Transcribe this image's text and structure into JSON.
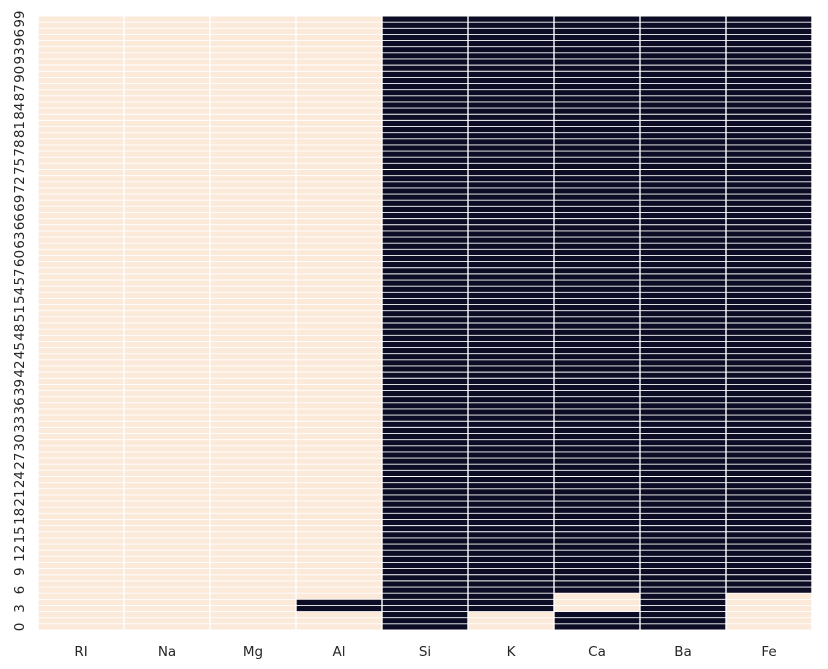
{
  "chart_data": {
    "type": "heatmap",
    "title": "",
    "xlabel": "",
    "ylabel": "",
    "columns": [
      "RI",
      "Na",
      "Mg",
      "Al",
      "Si",
      "K",
      "Ca",
      "Ba",
      "Fe"
    ],
    "row_count": 100,
    "row_order": "bottom-to-top",
    "y_tick_values": [
      0,
      3,
      6,
      9,
      12,
      15,
      18,
      21,
      24,
      27,
      30,
      33,
      36,
      39,
      42,
      45,
      48,
      51,
      54,
      57,
      60,
      63,
      66,
      69,
      72,
      75,
      78,
      81,
      84,
      87,
      90,
      93,
      96,
      99
    ],
    "color_true": "#0c0c24",
    "color_false": "#fbe9da",
    "gridline_color": "#ffffff",
    "colorbar": false,
    "true_rows_by_column": {
      "RI": [],
      "Na": [],
      "Mg": [],
      "Al": [
        3,
        4
      ],
      "Si": [
        0,
        1,
        2,
        3,
        4,
        5,
        6,
        7,
        8,
        9,
        10,
        11,
        12,
        13,
        14,
        15,
        16,
        17,
        18,
        19,
        20,
        21,
        22,
        23,
        24,
        25,
        26,
        27,
        28,
        29,
        30,
        31,
        32,
        33,
        34,
        35,
        36,
        37,
        38,
        39,
        40,
        41,
        42,
        43,
        44,
        45,
        46,
        47,
        48,
        49,
        50,
        51,
        52,
        53,
        54,
        55,
        56,
        57,
        58,
        59,
        60,
        61,
        62,
        63,
        64,
        65,
        66,
        67,
        68,
        69,
        70,
        71,
        72,
        73,
        74,
        75,
        76,
        77,
        78,
        79,
        80,
        81,
        82,
        83,
        84,
        85,
        86,
        87,
        88,
        89,
        90,
        91,
        92,
        93,
        94,
        95,
        96,
        97,
        98,
        99
      ],
      "K": [
        3,
        4,
        5,
        6,
        7,
        8,
        9,
        10,
        11,
        12,
        13,
        14,
        15,
        16,
        17,
        18,
        19,
        20,
        21,
        22,
        23,
        24,
        25,
        26,
        27,
        28,
        29,
        30,
        31,
        32,
        33,
        34,
        35,
        36,
        37,
        38,
        39,
        40,
        41,
        42,
        43,
        44,
        45,
        46,
        47,
        48,
        49,
        50,
        51,
        52,
        53,
        54,
        55,
        56,
        57,
        58,
        59,
        60,
        61,
        62,
        63,
        64,
        65,
        66,
        67,
        68,
        69,
        70,
        71,
        72,
        73,
        74,
        75,
        76,
        77,
        78,
        79,
        80,
        81,
        82,
        83,
        84,
        85,
        86,
        87,
        88,
        89,
        90,
        91,
        92,
        93,
        94,
        95,
        96,
        97,
        98,
        99
      ],
      "Ca": [
        0,
        1,
        2,
        6,
        7,
        8,
        9,
        10,
        11,
        12,
        13,
        14,
        15,
        16,
        17,
        18,
        19,
        20,
        21,
        22,
        23,
        24,
        25,
        26,
        27,
        28,
        29,
        30,
        31,
        32,
        33,
        34,
        35,
        36,
        37,
        38,
        39,
        40,
        41,
        42,
        43,
        44,
        45,
        46,
        47,
        48,
        49,
        50,
        51,
        52,
        53,
        54,
        55,
        56,
        57,
        58,
        59,
        60,
        61,
        62,
        63,
        64,
        65,
        66,
        67,
        68,
        69,
        70,
        71,
        72,
        73,
        74,
        75,
        76,
        77,
        78,
        79,
        80,
        81,
        82,
        83,
        84,
        85,
        86,
        87,
        88,
        89,
        90,
        91,
        92,
        93,
        94,
        95,
        96,
        97,
        98,
        99
      ],
      "Ba": [
        0,
        1,
        2,
        3,
        4,
        5,
        6,
        7,
        8,
        9,
        10,
        11,
        12,
        13,
        14,
        15,
        16,
        17,
        18,
        19,
        20,
        21,
        22,
        23,
        24,
        25,
        26,
        27,
        28,
        29,
        30,
        31,
        32,
        33,
        34,
        35,
        36,
        37,
        38,
        39,
        40,
        41,
        42,
        43,
        44,
        45,
        46,
        47,
        48,
        49,
        50,
        51,
        52,
        53,
        54,
        55,
        56,
        57,
        58,
        59,
        60,
        61,
        62,
        63,
        64,
        65,
        66,
        67,
        68,
        69,
        70,
        71,
        72,
        73,
        74,
        75,
        76,
        77,
        78,
        79,
        80,
        81,
        82,
        83,
        84,
        85,
        86,
        87,
        88,
        89,
        90,
        91,
        92,
        93,
        94,
        95,
        96,
        97,
        98,
        99
      ],
      "Fe": [
        6,
        7,
        8,
        9,
        10,
        11,
        12,
        13,
        14,
        15,
        16,
        17,
        18,
        19,
        20,
        21,
        22,
        23,
        24,
        25,
        26,
        27,
        28,
        29,
        30,
        31,
        32,
        33,
        34,
        35,
        36,
        37,
        38,
        39,
        40,
        41,
        42,
        43,
        44,
        45,
        46,
        47,
        48,
        49,
        50,
        51,
        52,
        53,
        54,
        55,
        56,
        57,
        58,
        59,
        60,
        61,
        62,
        63,
        64,
        65,
        66,
        67,
        68,
        69,
        70,
        71,
        72,
        73,
        74,
        75,
        76,
        77,
        78,
        79,
        80,
        81,
        82,
        83,
        84,
        85,
        86,
        87,
        88,
        89,
        90,
        91,
        92,
        93,
        94,
        95,
        96,
        97,
        98,
        99
      ]
    }
  }
}
